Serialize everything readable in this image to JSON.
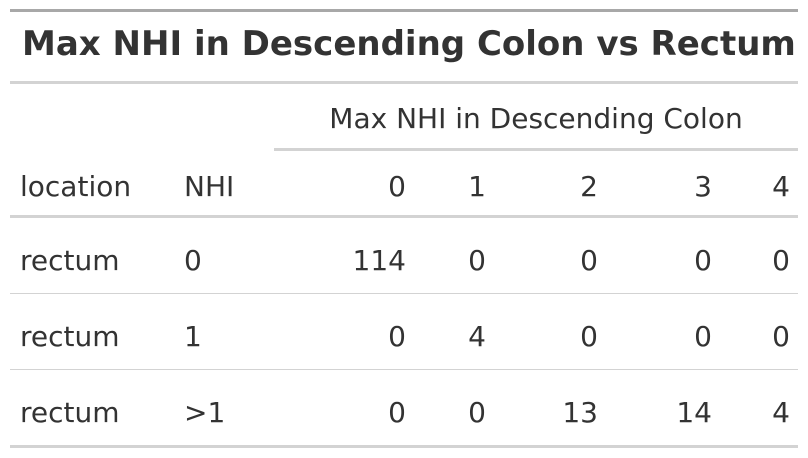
{
  "table": {
    "title": "Max NHI in Descending Colon vs Rectum",
    "spanner": "Max NHI in Descending Colon",
    "columns": [
      "location",
      "NHI",
      "0",
      "1",
      "2",
      "3",
      "4"
    ],
    "rows": [
      [
        "rectum",
        "0",
        "114",
        "0",
        "0",
        "0",
        "0"
      ],
      [
        "rectum",
        "1",
        "0",
        "4",
        "0",
        "0",
        "0"
      ],
      [
        "rectum",
        ">1",
        "0",
        "0",
        "13",
        "14",
        "4"
      ]
    ]
  }
}
